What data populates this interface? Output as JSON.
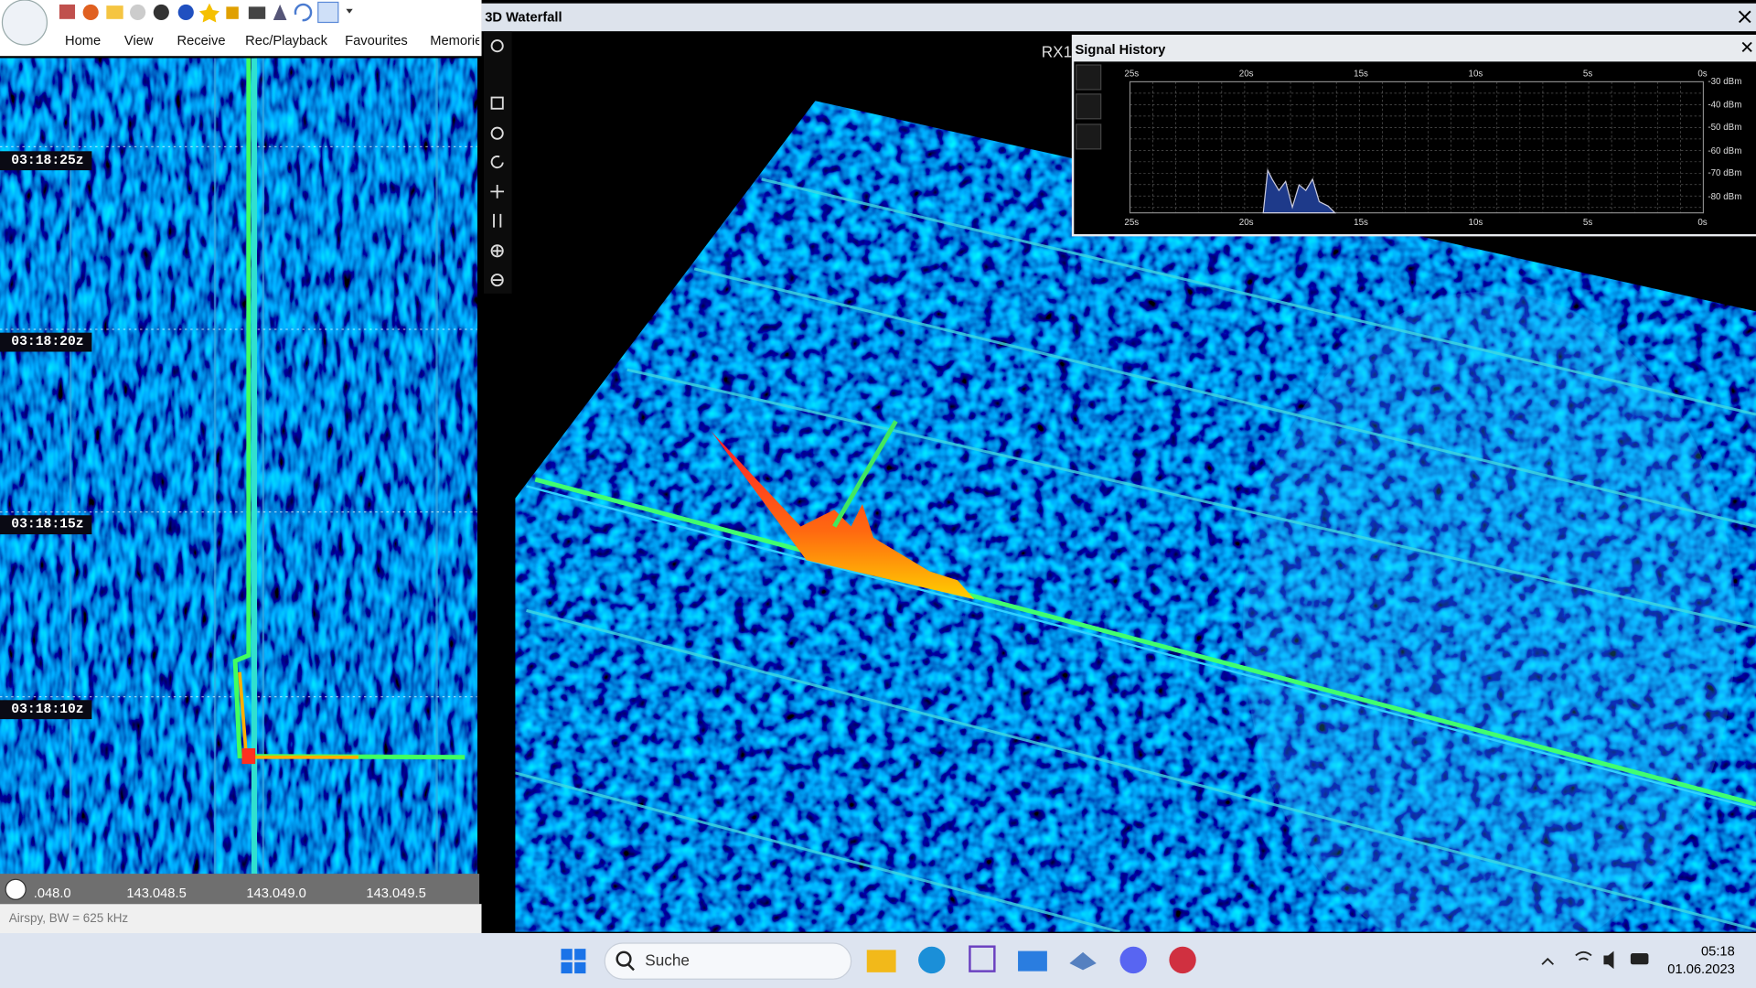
{
  "toolbar": {
    "menu": [
      "Home",
      "View",
      "Receive",
      "Rec/Playback",
      "Favourites",
      "Memorie"
    ]
  },
  "waterfall": {
    "timestamps": [
      "03:18:25z",
      "03:18:20z",
      "03:18:15z",
      "03:18:10z"
    ],
    "frequency_labels": [
      ".048.0",
      "143.048.5",
      "143.049.0",
      "143.049.5"
    ],
    "status": "Airspy, BW = 625 kHz"
  },
  "waterfall_3d": {
    "title": "3D Waterfall",
    "receiver": "RX1"
  },
  "signal_history": {
    "title": "Signal History",
    "time_labels": [
      "25s",
      "20s",
      "15s",
      "10s",
      "5s",
      "0s"
    ],
    "level_labels": [
      "-30 dBm",
      "-40 dBm",
      "-50 dBm",
      "-60 dBm",
      "-70 dBm",
      "-80 dBm"
    ]
  },
  "taskbar": {
    "search": "Suche",
    "time": "05:18",
    "date": "01.06.2023"
  }
}
